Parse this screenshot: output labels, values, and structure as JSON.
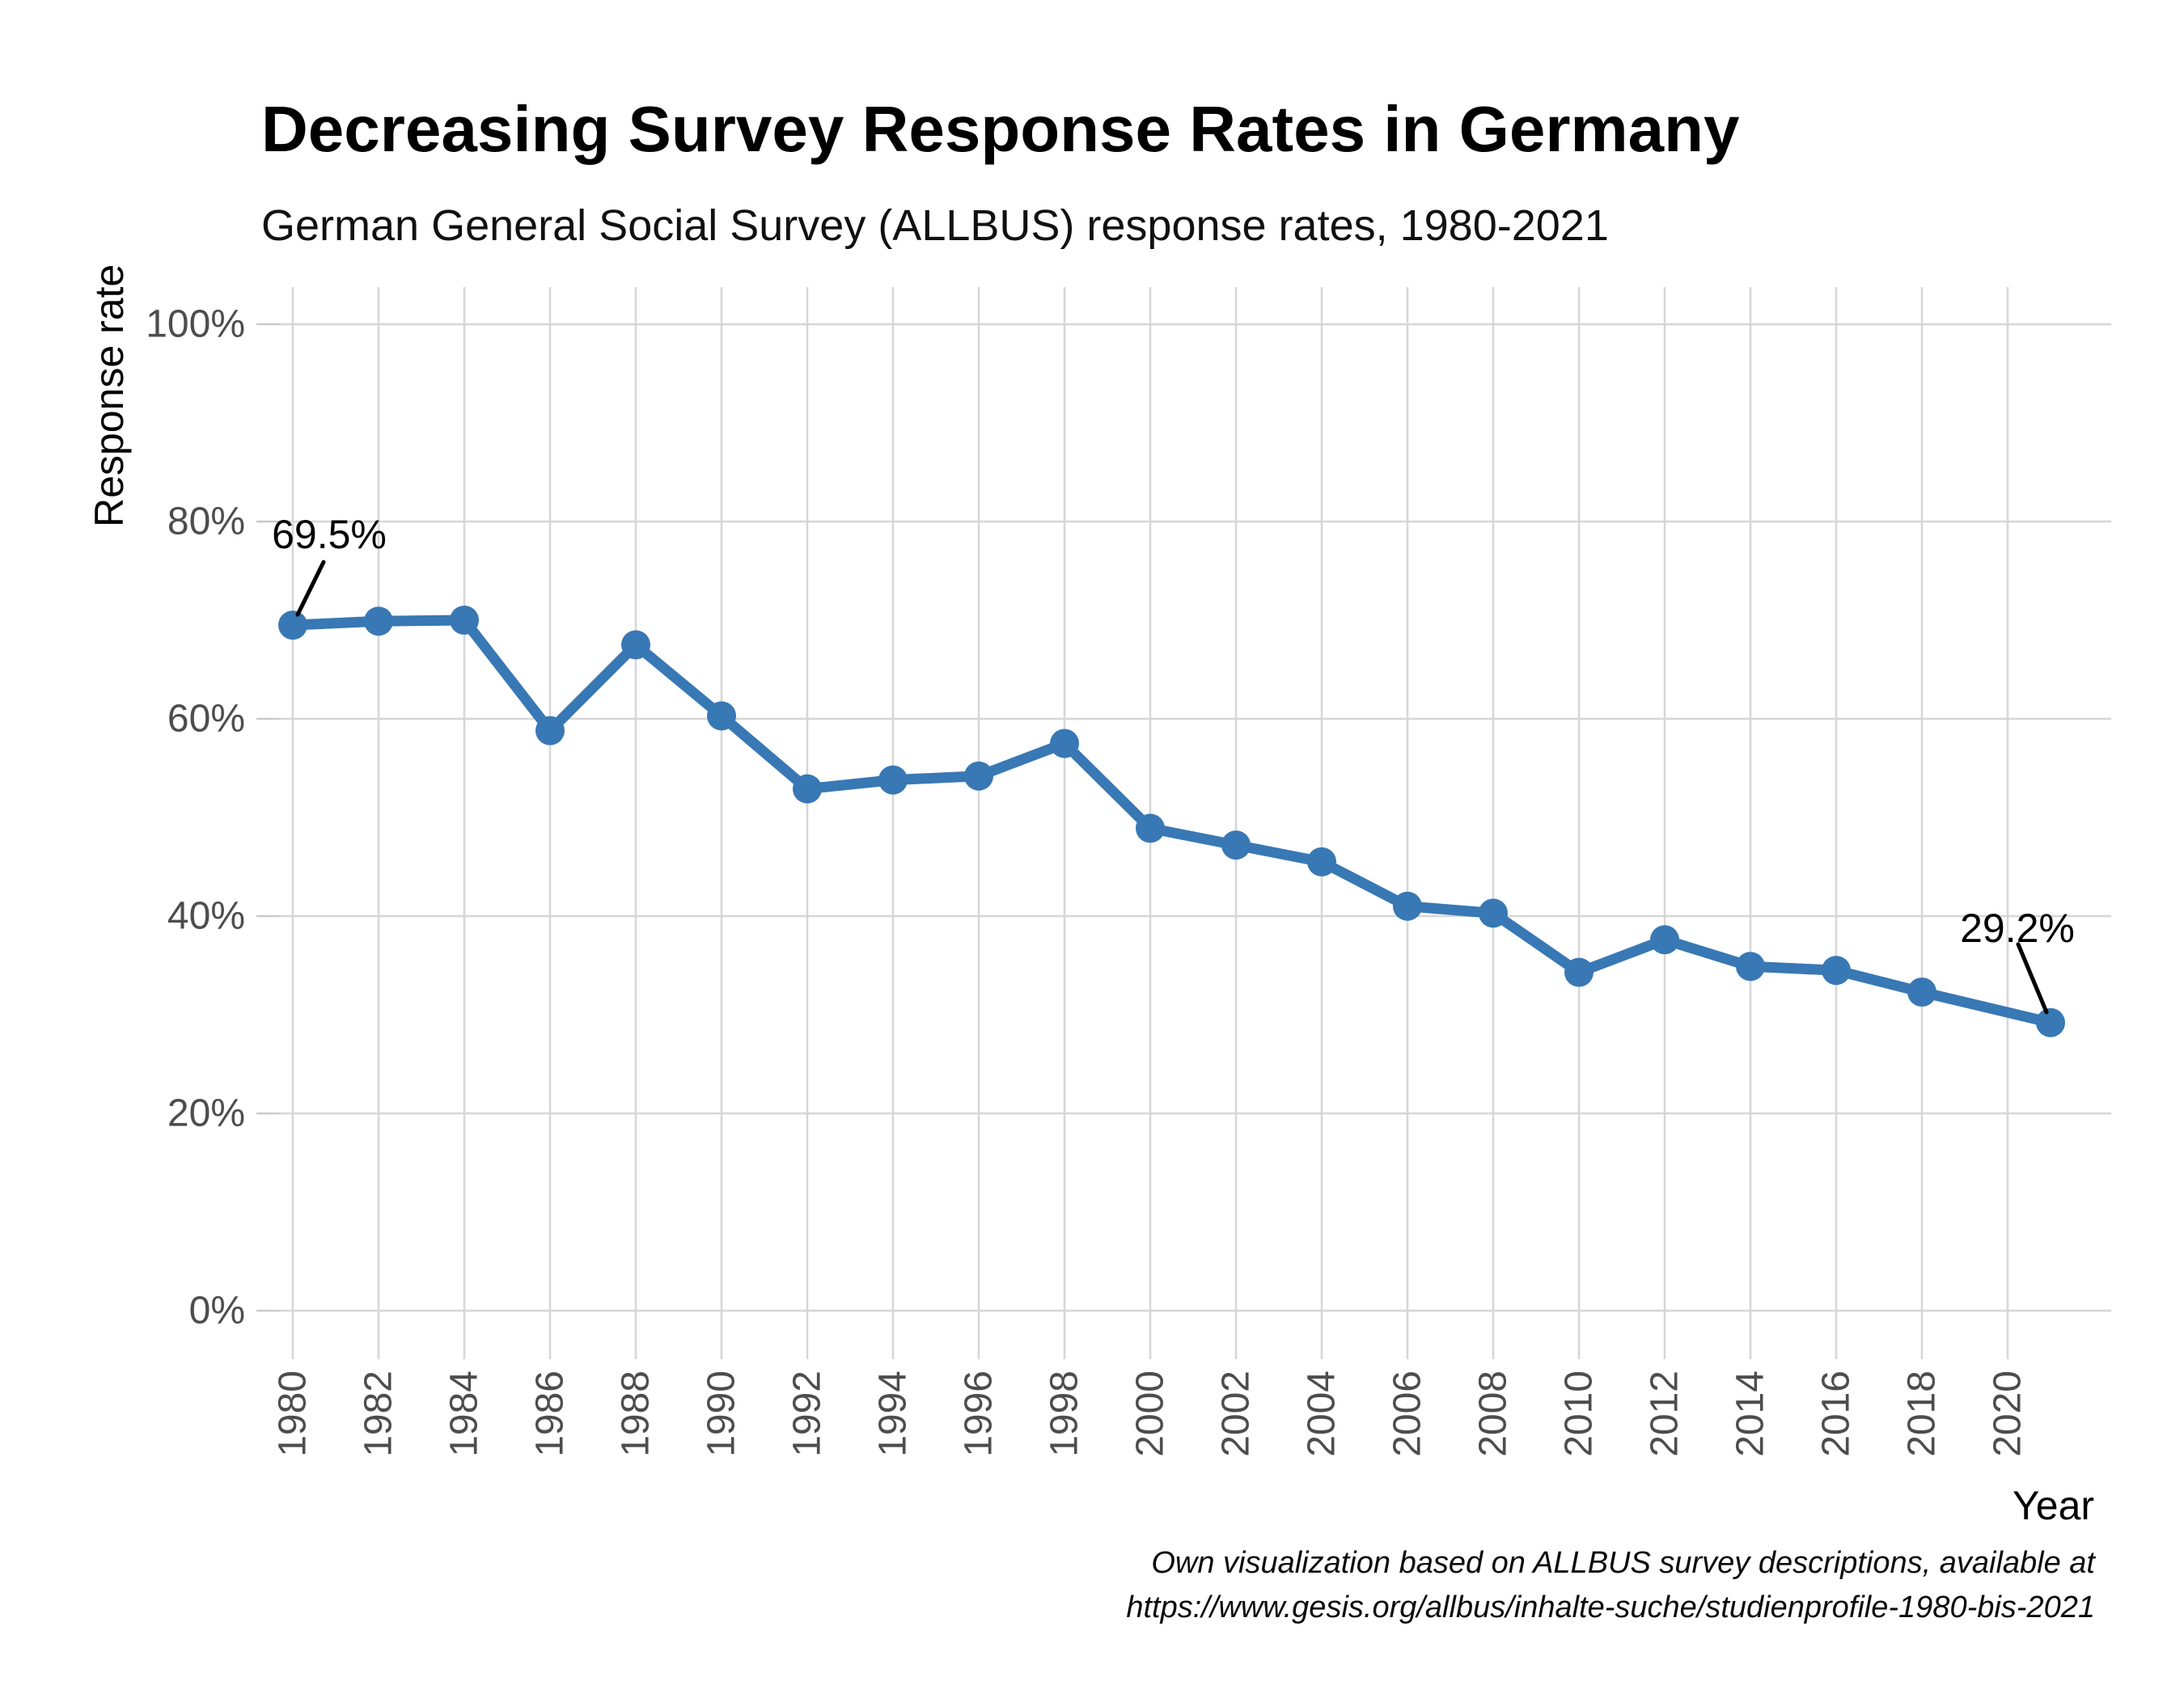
{
  "chart": {
    "title": "Decreasing Survey Response Rates in Germany",
    "subtitle": "German General Social Survey (ALLBUS) response rates, 1980-2021",
    "xlabel": "Year",
    "ylabel": "Response rate",
    "caption_line1": "Own visualization based on ALLBUS survey descriptions, available at",
    "caption_line2": "https://www.gesis.org/allbus/inhalte-suche/studienprofile-1980-bis-2021"
  },
  "chart_data": {
    "type": "line",
    "title": "Decreasing Survey Response Rates in Germany",
    "subtitle": "German General Social Survey (ALLBUS) response rates, 1980-2021",
    "xlabel": "Year",
    "ylabel": "Response rate",
    "x": [
      1980,
      1982,
      1984,
      1986,
      1988,
      1990,
      1992,
      1994,
      1996,
      1998,
      2000,
      2002,
      2004,
      2006,
      2008,
      2010,
      2012,
      2014,
      2016,
      2018,
      2021
    ],
    "values": [
      69.5,
      69.9,
      70.0,
      58.8,
      67.5,
      60.3,
      52.9,
      53.8,
      54.2,
      57.5,
      48.9,
      47.2,
      45.5,
      41.0,
      40.3,
      34.3,
      37.6,
      34.9,
      34.5,
      32.3,
      29.2
    ],
    "xticks": [
      1980,
      1982,
      1984,
      1986,
      1988,
      1990,
      1992,
      1994,
      1996,
      1998,
      2000,
      2002,
      2004,
      2006,
      2008,
      2010,
      2012,
      2014,
      2016,
      2018,
      2020
    ],
    "yticks": {
      "values": [
        0,
        20,
        40,
        60,
        80,
        100
      ],
      "labels": [
        "0%",
        "20%",
        "40%",
        "60%",
        "80%",
        "100%"
      ]
    },
    "ylim": [
      0,
      100
    ],
    "xlim": [
      1980,
      2021
    ],
    "grid": true,
    "legend": "none",
    "annotations": [
      {
        "label": "69.5%",
        "year": 1980,
        "value": 69.5
      },
      {
        "label": "29.2%",
        "year": 2021,
        "value": 29.2
      }
    ],
    "colors": {
      "line": "#3878b4",
      "point": "#3878b4",
      "grid": "#d6d6d6",
      "tick": "#c9c9c9",
      "tick_label": "#4d4d4d",
      "annotation": "#000000"
    }
  }
}
